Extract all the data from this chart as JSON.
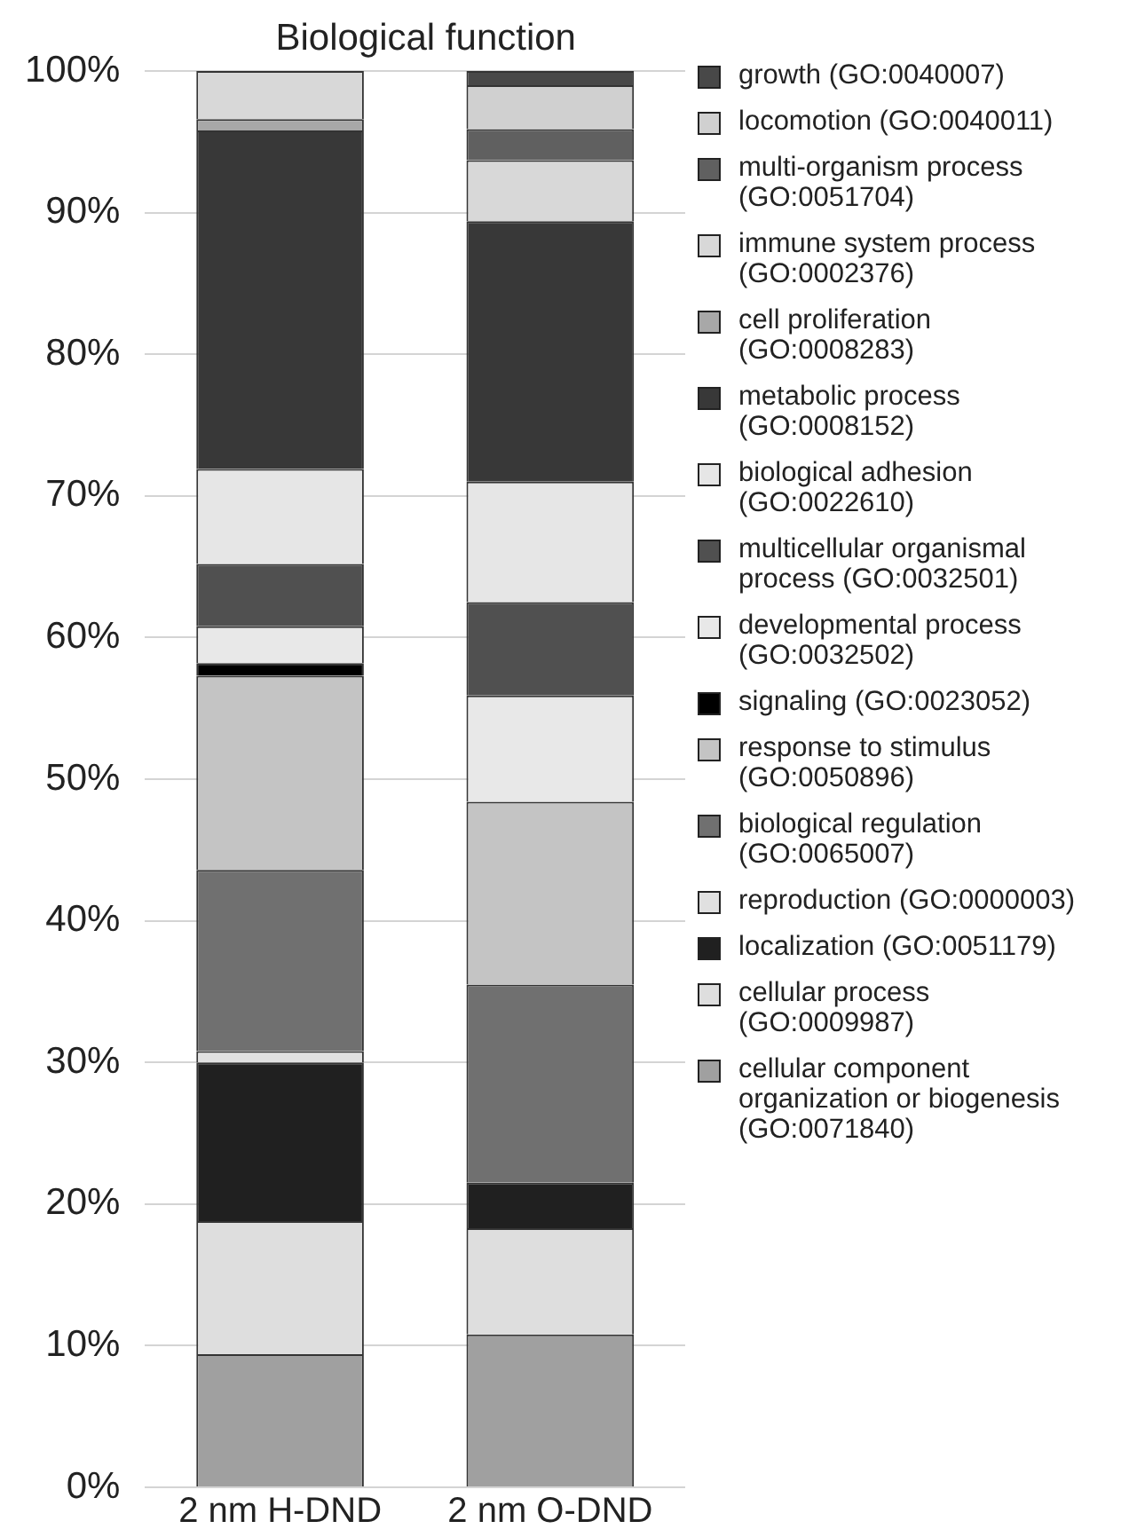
{
  "chart_data": {
    "type": "bar",
    "title": "Biological function",
    "stacked": true,
    "grid": "y",
    "legend": "right",
    "categories": [
      "2 nm H-DND",
      "2 nm O-DND"
    ],
    "ylim": [
      0,
      100
    ],
    "yticks": [
      {
        "value": 0,
        "label": "0%"
      },
      {
        "value": 10,
        "label": "10%"
      },
      {
        "value": 20,
        "label": "20%"
      },
      {
        "value": 30,
        "label": "30%"
      },
      {
        "value": 40,
        "label": "40%"
      },
      {
        "value": 50,
        "label": "50%"
      },
      {
        "value": 60,
        "label": "60%"
      },
      {
        "value": 70,
        "label": "70%"
      },
      {
        "value": 80,
        "label": "80%"
      },
      {
        "value": 90,
        "label": "90%"
      },
      {
        "value": 100,
        "label": "100%"
      }
    ],
    "series": [
      {
        "name": "cellular component organization or biogenesis (GO:0071840)",
        "color": "#a0a0a0",
        "values": [
          9.4,
          10.8
        ]
      },
      {
        "name": "cellular process (GO:0009987)",
        "color": "#dedede",
        "values": [
          9.4,
          7.5
        ]
      },
      {
        "name": "localization (GO:0051179)",
        "color": "#202020",
        "values": [
          11.2,
          3.2
        ]
      },
      {
        "name": "reproduction (GO:0000003)",
        "color": "#e0e0e0",
        "values": [
          0.8,
          0
        ]
      },
      {
        "name": "biological regulation (GO:0065007)",
        "color": "#707070",
        "values": [
          12.8,
          14.0
        ]
      },
      {
        "name": "response to stimulus (GO:0050896)",
        "color": "#c4c4c4",
        "values": [
          13.7,
          12.9
        ]
      },
      {
        "name": "signaling (GO:0023052)",
        "color": "#000000",
        "values": [
          0.9,
          0
        ]
      },
      {
        "name": "developmental process (GO:0032502)",
        "color": "#e8e8e8",
        "values": [
          2.6,
          7.5
        ]
      },
      {
        "name": "multicellular organismal process (GO:0032501)",
        "color": "#505050",
        "values": [
          4.4,
          6.6
        ]
      },
      {
        "name": "biological adhesion (GO:0022610)",
        "color": "#e6e6e6",
        "values": [
          6.7,
          8.5
        ]
      },
      {
        "name": "metabolic process (GO:0008152)",
        "color": "#383838",
        "values": [
          23.9,
          18.4
        ]
      },
      {
        "name": "cell proliferation (GO:0008283)",
        "color": "#a8a8a8",
        "values": [
          0.8,
          0
        ]
      },
      {
        "name": "immune system process (GO:0002376)",
        "color": "#d8d8d8",
        "values": [
          3.4,
          4.3
        ]
      },
      {
        "name": "multi-organism process (GO:0051704)",
        "color": "#606060",
        "values": [
          0,
          2.2
        ]
      },
      {
        "name": "locomotion (GO:0040011)",
        "color": "#d0d0d0",
        "values": [
          0,
          3.1
        ]
      },
      {
        "name": "growth (GO:0040007)",
        "color": "#484848",
        "values": [
          0,
          1.0
        ]
      }
    ]
  }
}
